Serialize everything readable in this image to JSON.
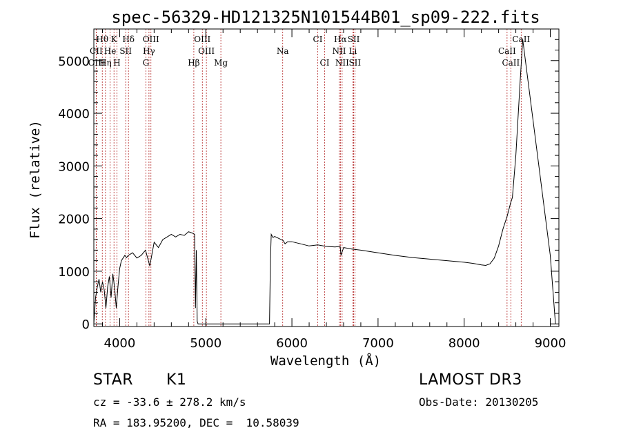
{
  "chart_data": {
    "type": "line",
    "title": "spec-56329-HD121325N101544B01_sp09-222.fits",
    "xlabel": "Wavelength (Å)",
    "ylabel": "Flux (relative)",
    "xlim": [
      3700,
      9100
    ],
    "ylim": [
      -50,
      5600
    ],
    "xticks": [
      4000,
      5000,
      6000,
      7000,
      8000,
      9000
    ],
    "yticks": [
      0,
      1000,
      2000,
      3000,
      4000,
      5000
    ],
    "series": [
      {
        "name": "flux",
        "x": [
          3700,
          3720,
          3740,
          3760,
          3780,
          3800,
          3820,
          3840,
          3860,
          3880,
          3900,
          3920,
          3940,
          3960,
          3980,
          4000,
          4020,
          4040,
          4060,
          4080,
          4100,
          4150,
          4200,
          4250,
          4300,
          4350,
          4400,
          4450,
          4500,
          4550,
          4600,
          4650,
          4700,
          4750,
          4800,
          4850,
          4870,
          4880,
          4890,
          4900,
          4910,
          5740,
          5750,
          5760,
          5780,
          5800,
          5850,
          5900,
          5920,
          5950,
          6000,
          6100,
          6200,
          6300,
          6400,
          6500,
          6560,
          6570,
          6600,
          6700,
          6800,
          7000,
          7200,
          7400,
          7600,
          7800,
          8000,
          8100,
          8200,
          8250,
          8300,
          8350,
          8400,
          8450,
          8500,
          8540,
          8560,
          8600,
          8650,
          8680,
          9000,
          9060
        ],
        "y": [
          0,
          500,
          700,
          850,
          600,
          800,
          650,
          300,
          700,
          900,
          500,
          950,
          700,
          300,
          700,
          1050,
          1200,
          1250,
          1300,
          1260,
          1300,
          1350,
          1250,
          1300,
          1400,
          1100,
          1550,
          1450,
          1600,
          1650,
          1700,
          1650,
          1700,
          1680,
          1750,
          1720,
          1700,
          300,
          1400,
          50,
          0,
          0,
          1200,
          1700,
          1640,
          1660,
          1620,
          1580,
          1520,
          1560,
          1560,
          1520,
          1480,
          1500,
          1470,
          1460,
          1470,
          1300,
          1450,
          1420,
          1400,
          1350,
          1300,
          1260,
          1230,
          1200,
          1170,
          1150,
          1120,
          1110,
          1140,
          1250,
          1480,
          1800,
          2050,
          2300,
          2400,
          3200,
          4600,
          5400,
          1300,
          0
        ]
      }
    ],
    "spectral_lines": [
      {
        "label": "Hθ",
        "x": 3798,
        "row": 1
      },
      {
        "label": "K",
        "x": 3934,
        "row": 1
      },
      {
        "label": "Hδ",
        "x": 4102,
        "row": 1
      },
      {
        "label": "OIII",
        "x": 4363,
        "row": 1
      },
      {
        "label": "OIII",
        "x": 4960,
        "row": 1
      },
      {
        "label": "CI",
        "x": 6300,
        "row": 1
      },
      {
        "label": "Hα",
        "x": 6563,
        "row": 1
      },
      {
        "label": "SII",
        "x": 6717,
        "row": 1
      },
      {
        "label": "CaII",
        "x": 8662,
        "row": 1
      },
      {
        "label": "CII",
        "x": 3727,
        "row": 2
      },
      {
        "label": "He",
        "x": 3889,
        "row": 2
      },
      {
        "label": "SII",
        "x": 4070,
        "row": 2
      },
      {
        "label": "Hγ",
        "x": 4340,
        "row": 2
      },
      {
        "label": "OIII",
        "x": 5007,
        "row": 2
      },
      {
        "label": "Na",
        "x": 5893,
        "row": 2
      },
      {
        "label": "NII",
        "x": 6548,
        "row": 2
      },
      {
        "label": "Li",
        "x": 6708,
        "row": 2
      },
      {
        "label": "CaII",
        "x": 8498,
        "row": 2
      },
      {
        "label": "OIII",
        "x": 3729,
        "row": 3
      },
      {
        "label": "Hη",
        "x": 3835,
        "row": 3
      },
      {
        "label": "H",
        "x": 3968,
        "row": 3
      },
      {
        "label": "G",
        "x": 4304,
        "row": 3
      },
      {
        "label": "Hβ",
        "x": 4861,
        "row": 3
      },
      {
        "label": "Mg",
        "x": 5175,
        "row": 3
      },
      {
        "label": "CI",
        "x": 6380,
        "row": 3
      },
      {
        "label": "NII",
        "x": 6583,
        "row": 3
      },
      {
        "label": "SII",
        "x": 6731,
        "row": 3
      },
      {
        "label": "CaII",
        "x": 8542,
        "row": 3
      }
    ]
  },
  "info": {
    "object_class": "STAR",
    "subclass": "K1",
    "survey": "LAMOST DR3",
    "velocity": "cz = -33.6 ± 278.2 km/s",
    "obs_date": "Obs-Date: 20130205",
    "coords": "RA = 183.95200, DEC =  10.58039"
  },
  "colors": {
    "line_marker": "#b22222",
    "spectrum": "#000000"
  }
}
